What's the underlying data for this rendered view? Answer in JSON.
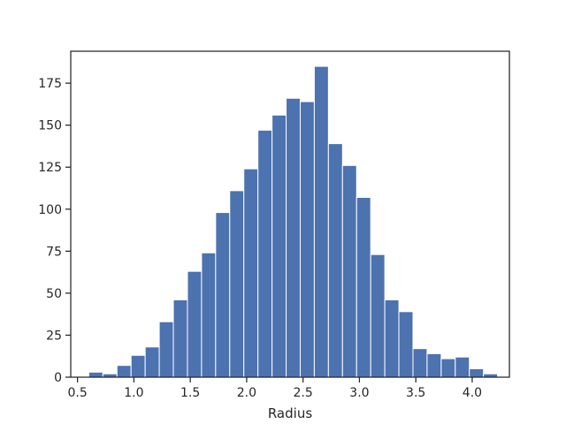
{
  "chart_data": {
    "type": "bar",
    "subtype": "histogram",
    "title": "",
    "xlabel": "Radius",
    "ylabel": "",
    "xlim": [
      0.44,
      4.33
    ],
    "ylim": [
      0,
      194
    ],
    "x_ticks": [
      0.5,
      1.0,
      1.5,
      2.0,
      2.5,
      3.0,
      3.5,
      4.0
    ],
    "x_tick_labels": [
      "0.5",
      "1.0",
      "1.5",
      "2.0",
      "2.5",
      "3.0",
      "3.5",
      "4.0"
    ],
    "y_ticks": [
      0,
      25,
      50,
      75,
      100,
      125,
      150,
      175
    ],
    "y_tick_labels": [
      "0",
      "25",
      "50",
      "75",
      "100",
      "125",
      "150",
      "175"
    ],
    "bin_edges": [
      0.6,
      0.725,
      0.85,
      0.975,
      1.1,
      1.225,
      1.35,
      1.475,
      1.6,
      1.725,
      1.85,
      1.975,
      2.1,
      2.225,
      2.35,
      2.475,
      2.6,
      2.725,
      2.85,
      2.975,
      3.1,
      3.225,
      3.35,
      3.475,
      3.6,
      3.725,
      3.85,
      3.975,
      4.1,
      4.225
    ],
    "counts": [
      3,
      2,
      7,
      13,
      18,
      33,
      46,
      63,
      74,
      98,
      111,
      124,
      147,
      156,
      166,
      164,
      185,
      139,
      126,
      107,
      73,
      46,
      39,
      17,
      14,
      11,
      12,
      5,
      2
    ],
    "bar_color": "#4c72b0",
    "grid": false,
    "legend": "none"
  }
}
